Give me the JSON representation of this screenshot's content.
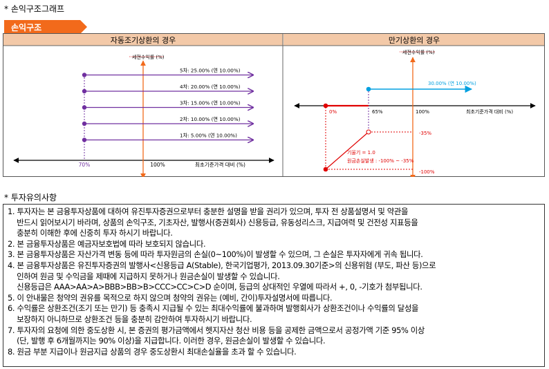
{
  "section_title": "* 손익구조그래프",
  "ribbon_label": "손익구조",
  "colors": {
    "accent_orange": "#f26a1b",
    "purple": "#7030a0",
    "red": "#e00000",
    "blue": "#00a0e0",
    "panel_header": "#f3c9a8"
  },
  "left_panel": {
    "header": "자동조기상환의 경우",
    "y_axis_label": "세전수익률 (%)",
    "x_axis_label": "최초기준가격 대비 (%)",
    "x_ticks": [
      "70%",
      "100%"
    ],
    "lines": [
      {
        "label": "5차: 25.00% (연 10.00%)",
        "return_pct": 25.0
      },
      {
        "label": "4차: 20.00% (연 10.00%)",
        "return_pct": 20.0
      },
      {
        "label": "3차: 15.00% (연 10.00%)",
        "return_pct": 15.0
      },
      {
        "label": "2차: 10.00% (연 10.00%)",
        "return_pct": 10.0
      },
      {
        "label": "1차:  5.00% (연 10.00%)",
        "return_pct": 5.0
      }
    ]
  },
  "right_panel": {
    "header": "만기상환의 경우",
    "y_axis_label": "세전수익률 (%)",
    "x_axis_label": "최초기준가격 대비 (%)",
    "gain_label": "30.00% (연 10.00%)",
    "x_ticks": [
      "0%",
      "65%",
      "100%"
    ],
    "y_ticks": [
      "-35%",
      "-100%"
    ],
    "leverage_label": "기울기 = 1.0",
    "loss_label": "원금손실발생 : -100% ~ -35%"
  },
  "notes_title": "* 투자유의사항",
  "notes": [
    "1. 투자자는 본 금융투자상품에 대하여 유진투자증권으로부터 충분한 설명을 받을 권리가 있으며, 투자 전 상품설명서 및 약관을",
    "    반드시 읽어보시기 바라며, 상품의 손익구조, 기초자산, 발행사(증권회사) 신용등급, 유동성리스크, 지급여력 및 건전성 지표등을",
    "    충분히 이해한 후에 신중히 투자 하시기 바랍니다.",
    "2. 본 금융투자상품은 예금자보호법에 따라 보호되지 않습니다.",
    "3. 본 금융투자상품은 자산가격 변동 등에 따라 투자원금의 손실(0~100%)이 발생할 수 있으며, 그 손실은 투자자에게 귀속 됩니다.",
    "4. 본 금융투자상품은 유진투자증권의 발행사<신용등급 A(Stable), 한국기업평가, 2013.09.30기준>의 신용위험 (부도, 파산 등)으로",
    "    인하여 원금 및 수익금을 제때에 지급하지 못하거나 원금손실이 발생할 수 있습니다.",
    "    신용등급은 AAA>AA>A>BBB>BB>B>CCC>CC>C>D 순이며, 등급의 상대적인 우열에 따라서 +, 0, -기호가 첨부됩니다.",
    "5. 이 안내물은 청약의 권유를 목적으로 하지 않으며 청약의 권유는 (예비, 간이)투자설명서에 따릅니다.",
    "6. 수익률은 상환조건(조기 또는 만기) 등 충족시 지급될 수 있는 최대수익률에 불과하며 발행회사가 상환조건이나 수익률의 달성을",
    "    보장하지 아니하므로 상환조건 등을 충분히 감안하여 투자하시기 바랍니다.",
    "7. 투자자의 요청에 의한 중도상환 시, 본 증권의 평가금액에서 헷지자산 청산 비용 등을 공제한 금액으로서 공정가액 기준 95% 이상",
    "    (단, 발행 후 6개월까지는 90% 이상)을 지급합니다. 이러한 경우, 원금손실이 발생할 수 있습니다.",
    "8. 원금 부분 지급이나 원금지급 상품의 경우 중도상환시 최대손실율을 초과 할 수 있습니다."
  ]
}
